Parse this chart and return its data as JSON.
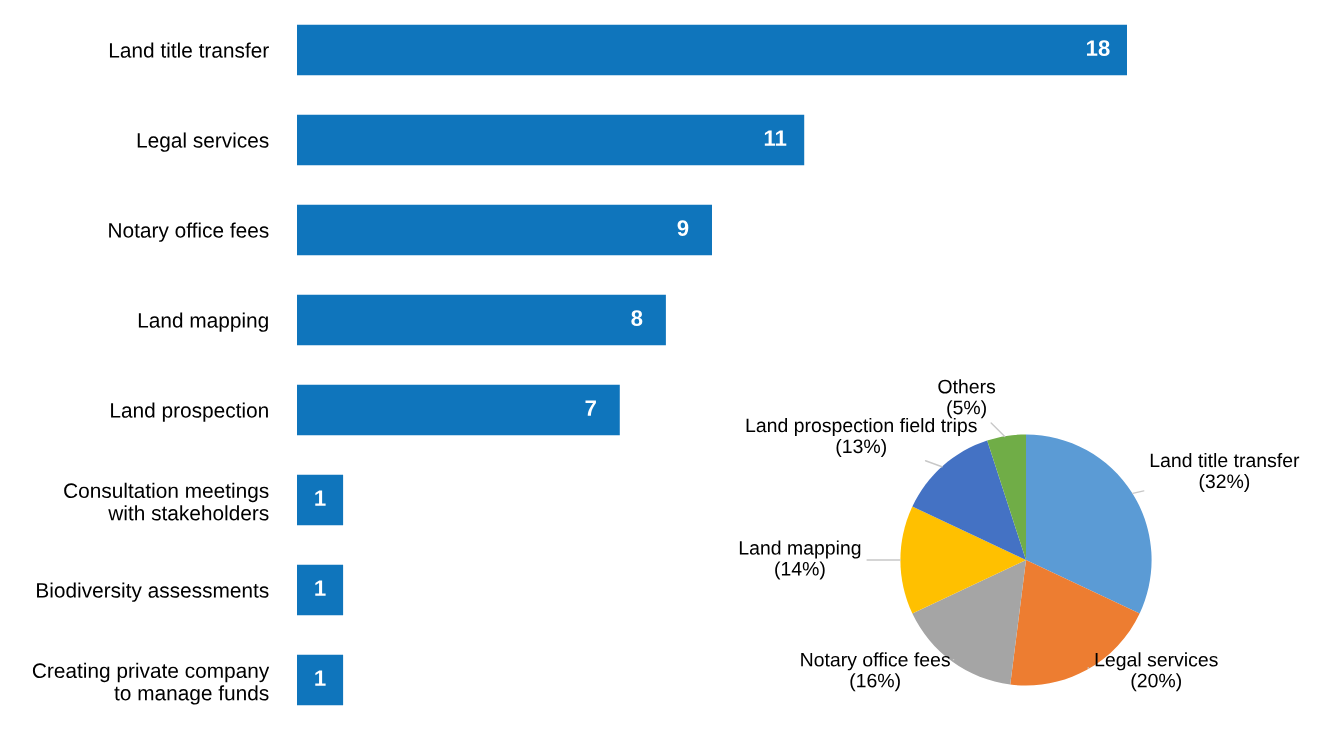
{
  "chart_data": [
    {
      "type": "bar",
      "orientation": "horizontal",
      "categories": [
        "Land title transfer",
        "Legal services",
        "Notary office fees",
        "Land mapping",
        "Land prospection",
        "Consultation meetings\nwith stakeholders",
        "Biodiversity assessments",
        "Creating private company\nto manage funds"
      ],
      "values": [
        18,
        11,
        9,
        8,
        7,
        1,
        1,
        1
      ],
      "color": "#0f75bc",
      "data_labels": true,
      "tick_labels": "y",
      "grid": false,
      "legend": false
    },
    {
      "type": "pie",
      "categories": [
        "Land title transfer",
        "Legal services",
        "Notary office fees",
        "Land mapping",
        "Land prospection field trips",
        "Others"
      ],
      "values": [
        32,
        20,
        16,
        14,
        13,
        5
      ],
      "value_labels": [
        "(32%)",
        "(20%)",
        "(16%)",
        "(14%)",
        "(13%)",
        "(5%)"
      ],
      "colors": [
        "#5b9bd5",
        "#ed7d31",
        "#a5a5a5",
        "#ffc000",
        "#4472c4",
        "#70ad47"
      ],
      "legend": false
    }
  ]
}
